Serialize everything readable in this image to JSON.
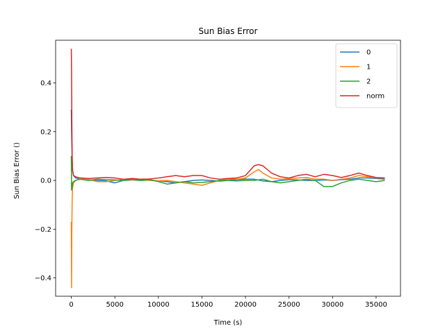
{
  "chart_data": {
    "type": "line",
    "title": "Sun Bias Error",
    "xlabel": "Time (s)",
    "ylabel": "Sun Bias Error ()",
    "xlim": [
      -1800,
      37800
    ],
    "ylim": [
      -0.475,
      0.575
    ],
    "xticks": [
      0,
      5000,
      10000,
      15000,
      20000,
      25000,
      30000,
      35000
    ],
    "yticks": [
      -0.4,
      -0.2,
      0.0,
      0.2,
      0.4
    ],
    "ytick_labels": [
      "−0.4",
      "−0.2",
      "0.0",
      "0.2",
      "0.4"
    ],
    "grid": false,
    "legend_position": "top-right",
    "series": [
      {
        "name": "0",
        "color": "#1f77b4",
        "points": [
          [
            0,
            0.29
          ],
          [
            30,
            0.2
          ],
          [
            60,
            0.15
          ],
          [
            100,
            0.08
          ],
          [
            150,
            0.04
          ],
          [
            250,
            0.02
          ],
          [
            500,
            0.01
          ],
          [
            1000,
            0.005
          ],
          [
            2000,
            0.003
          ],
          [
            3000,
            0.0
          ],
          [
            4000,
            -0.002
          ],
          [
            5000,
            -0.01
          ],
          [
            6000,
            0.0
          ],
          [
            7000,
            0.002
          ],
          [
            8000,
            0.0
          ],
          [
            9000,
            0.002
          ],
          [
            10000,
            -0.002
          ],
          [
            11000,
            -0.005
          ],
          [
            12000,
            -0.01
          ],
          [
            13000,
            -0.005
          ],
          [
            14000,
            0.0
          ],
          [
            15000,
            0.002
          ],
          [
            16000,
            0.0
          ],
          [
            17000,
            -0.003
          ],
          [
            18000,
            0.0
          ],
          [
            19000,
            0.003
          ],
          [
            20000,
            0.005
          ],
          [
            21000,
            0.005
          ],
          [
            22000,
            -0.002
          ],
          [
            23000,
            -0.005
          ],
          [
            24000,
            0.0
          ],
          [
            25000,
            0.003
          ],
          [
            26000,
            0.002
          ],
          [
            27000,
            0.0
          ],
          [
            28000,
            0.0
          ],
          [
            29000,
            0.002
          ],
          [
            30000,
            0.0
          ],
          [
            31000,
            0.003
          ],
          [
            32000,
            0.005
          ],
          [
            33000,
            0.01
          ],
          [
            34000,
            0.01
          ],
          [
            35000,
            0.008
          ],
          [
            36000,
            0.005
          ]
        ]
      },
      {
        "name": "1",
        "color": "#ff7f0e",
        "points": [
          [
            0,
            -0.17
          ],
          [
            30,
            -0.44
          ],
          [
            60,
            -0.2
          ],
          [
            100,
            -0.08
          ],
          [
            150,
            -0.03
          ],
          [
            250,
            -0.01
          ],
          [
            500,
            0.0
          ],
          [
            1000,
            0.005
          ],
          [
            2000,
            0.003
          ],
          [
            3000,
            -0.005
          ],
          [
            4000,
            -0.005
          ],
          [
            5000,
            0.0
          ],
          [
            6000,
            0.005
          ],
          [
            7000,
            0.002
          ],
          [
            8000,
            0.003
          ],
          [
            9000,
            0.0
          ],
          [
            10000,
            -0.002
          ],
          [
            11000,
            0.0
          ],
          [
            12000,
            -0.005
          ],
          [
            13000,
            -0.01
          ],
          [
            14000,
            -0.015
          ],
          [
            15000,
            -0.02
          ],
          [
            16000,
            -0.01
          ],
          [
            17000,
            0.0
          ],
          [
            18000,
            0.005
          ],
          [
            19000,
            0.005
          ],
          [
            20000,
            0.01
          ],
          [
            21000,
            0.035
          ],
          [
            21500,
            0.045
          ],
          [
            22000,
            0.03
          ],
          [
            23000,
            0.01
          ],
          [
            24000,
            0.005
          ],
          [
            25000,
            0.008
          ],
          [
            26000,
            0.01
          ],
          [
            27000,
            0.012
          ],
          [
            28000,
            0.005
          ],
          [
            29000,
            0.005
          ],
          [
            30000,
            0.0
          ],
          [
            31000,
            0.005
          ],
          [
            32000,
            0.01
          ],
          [
            33000,
            0.02
          ],
          [
            34000,
            0.015
          ],
          [
            35000,
            0.01
          ],
          [
            36000,
            0.01
          ]
        ]
      },
      {
        "name": "2",
        "color": "#2ca02c",
        "points": [
          [
            0,
            0.1
          ],
          [
            30,
            -0.04
          ],
          [
            60,
            -0.02
          ],
          [
            100,
            -0.03
          ],
          [
            150,
            -0.01
          ],
          [
            250,
            -0.005
          ],
          [
            500,
            0.0
          ],
          [
            1000,
            0.005
          ],
          [
            2000,
            0.0
          ],
          [
            3000,
            0.005
          ],
          [
            4000,
            0.003
          ],
          [
            5000,
            0.002
          ],
          [
            6000,
            0.0
          ],
          [
            7000,
            0.005
          ],
          [
            8000,
            0.0
          ],
          [
            9000,
            0.003
          ],
          [
            10000,
            -0.005
          ],
          [
            11000,
            -0.015
          ],
          [
            12000,
            -0.01
          ],
          [
            13000,
            -0.005
          ],
          [
            14000,
            -0.01
          ],
          [
            15000,
            -0.008
          ],
          [
            16000,
            -0.005
          ],
          [
            17000,
            0.0
          ],
          [
            18000,
            0.0
          ],
          [
            19000,
            -0.002
          ],
          [
            20000,
            0.0
          ],
          [
            21000,
            0.0
          ],
          [
            22000,
            0.005
          ],
          [
            23000,
            -0.005
          ],
          [
            24000,
            -0.01
          ],
          [
            25000,
            -0.005
          ],
          [
            26000,
            0.0
          ],
          [
            27000,
            0.005
          ],
          [
            28000,
            0.0
          ],
          [
            29000,
            -0.025
          ],
          [
            30000,
            -0.025
          ],
          [
            31000,
            -0.01
          ],
          [
            32000,
            0.0
          ],
          [
            33000,
            0.005
          ],
          [
            34000,
            0.0
          ],
          [
            35000,
            -0.005
          ],
          [
            36000,
            0.0
          ]
        ]
      },
      {
        "name": "norm",
        "color": "#d62728",
        "points": [
          [
            0,
            0.54
          ],
          [
            30,
            0.45
          ],
          [
            60,
            0.25
          ],
          [
            100,
            0.1
          ],
          [
            150,
            0.04
          ],
          [
            250,
            0.02
          ],
          [
            500,
            0.015
          ],
          [
            1000,
            0.01
          ],
          [
            2000,
            0.008
          ],
          [
            3000,
            0.01
          ],
          [
            4000,
            0.012
          ],
          [
            5000,
            0.01
          ],
          [
            6000,
            0.005
          ],
          [
            7000,
            0.008
          ],
          [
            8000,
            0.005
          ],
          [
            9000,
            0.006
          ],
          [
            10000,
            0.01
          ],
          [
            11000,
            0.015
          ],
          [
            12000,
            0.02
          ],
          [
            13000,
            0.015
          ],
          [
            14000,
            0.02
          ],
          [
            15000,
            0.02
          ],
          [
            16000,
            0.01
          ],
          [
            17000,
            0.005
          ],
          [
            18000,
            0.008
          ],
          [
            19000,
            0.01
          ],
          [
            20000,
            0.02
          ],
          [
            21000,
            0.06
          ],
          [
            21500,
            0.065
          ],
          [
            22000,
            0.06
          ],
          [
            23000,
            0.03
          ],
          [
            24000,
            0.015
          ],
          [
            25000,
            0.01
          ],
          [
            26000,
            0.02
          ],
          [
            27000,
            0.025
          ],
          [
            28000,
            0.015
          ],
          [
            29000,
            0.025
          ],
          [
            30000,
            0.02
          ],
          [
            31000,
            0.012
          ],
          [
            32000,
            0.02
          ],
          [
            33000,
            0.03
          ],
          [
            34000,
            0.02
          ],
          [
            35000,
            0.012
          ],
          [
            36000,
            0.01
          ]
        ]
      }
    ]
  }
}
